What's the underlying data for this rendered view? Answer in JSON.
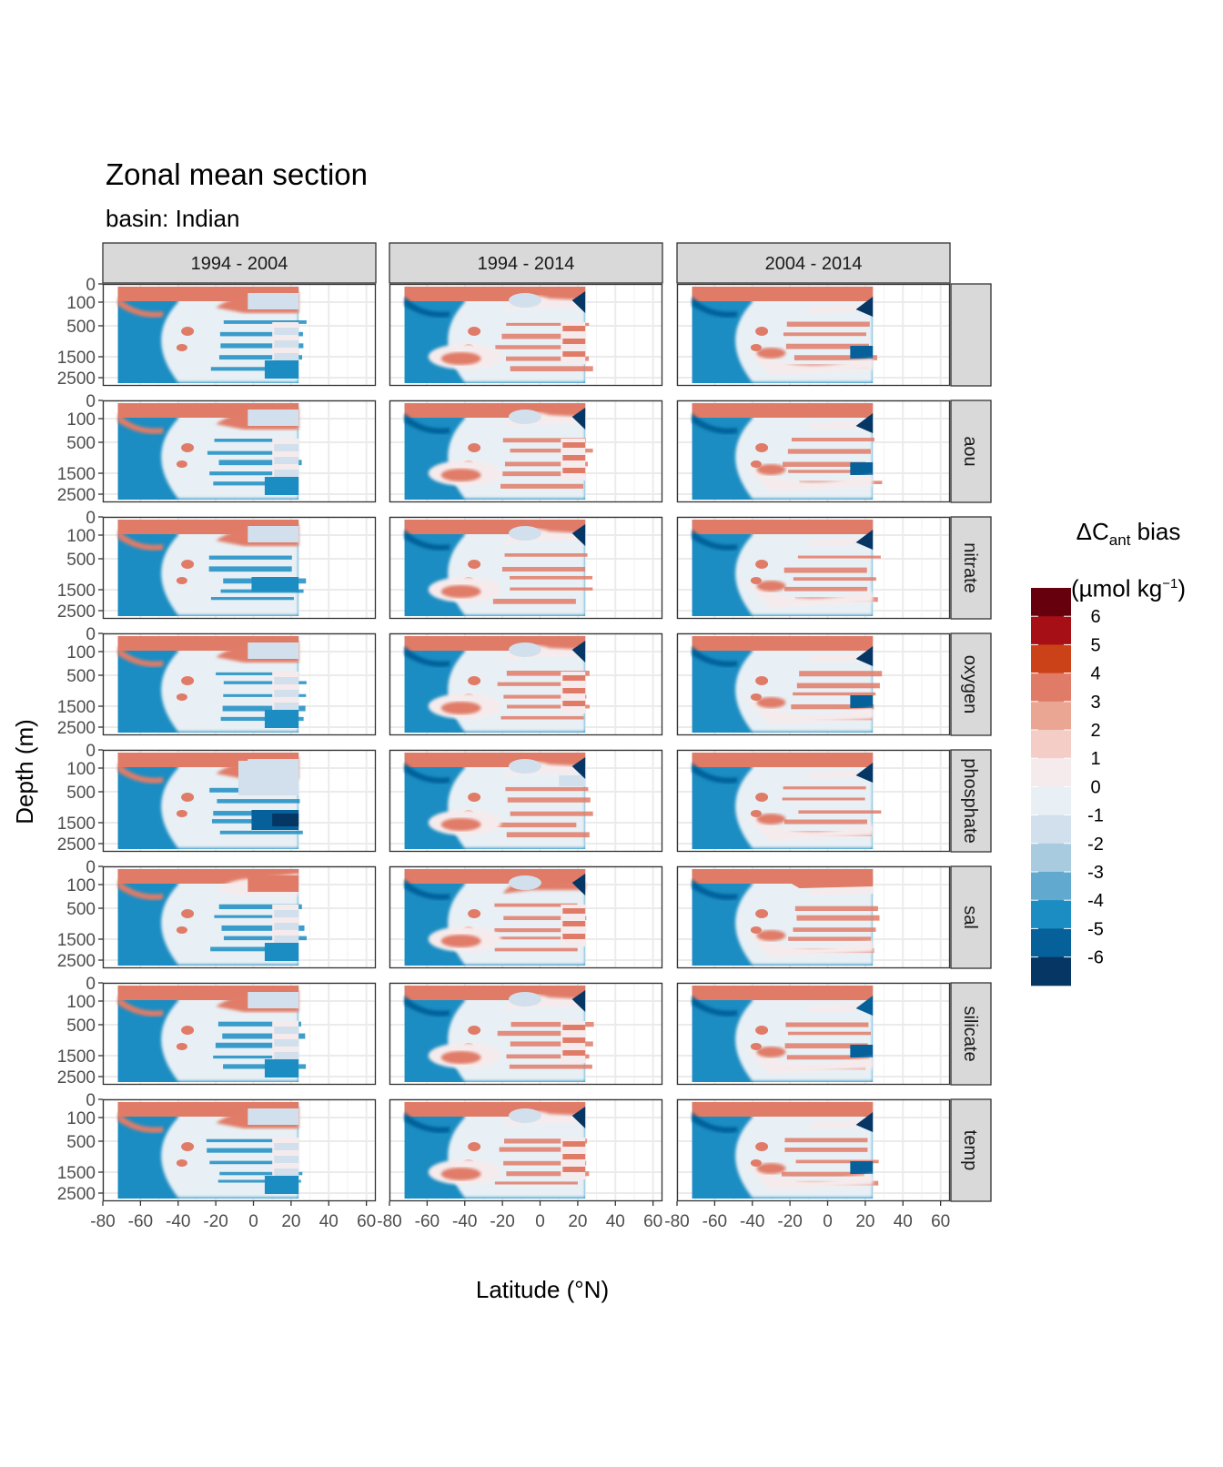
{
  "chart_data": {
    "type": "heatmap",
    "title": "Zonal mean section",
    "subtitle": "basin: Indian",
    "xlabel": "Latitude (°N)",
    "ylabel": "Depth (m)",
    "xlim": [
      -80,
      65
    ],
    "x_ticks": [
      "-80",
      "-60",
      "-40",
      "-20",
      "0",
      "20",
      "40",
      "60"
    ],
    "y_ticks": [
      "0",
      "100",
      "500",
      "1500",
      "2500"
    ],
    "column_facets": [
      "1994 - 2004",
      "1994 - 2014",
      "2004 - 2014"
    ],
    "row_facets": [
      "",
      "aou",
      "nitrate",
      "oxygen",
      "phosphate",
      "sal",
      "silicate",
      "temp"
    ],
    "legend": {
      "title_main": "ΔC",
      "title_sub": "ant",
      "title_rest": " bias",
      "unit_open": "(µmol kg",
      "unit_sup": "−1",
      "unit_close": ")",
      "labels": [
        "6",
        "5",
        "4",
        "3",
        "2",
        "1",
        "0",
        "-1",
        "-2",
        "-3",
        "-4",
        "-5",
        "-6"
      ],
      "bin_colors": [
        "#67000d",
        "#a50f15",
        "#cb4218",
        "#e07b67",
        "#eba593",
        "#f3cdc6",
        "#f6ebec",
        "#e8f0f5",
        "#d1e0ec",
        "#a8cbe0",
        "#62a9cf",
        "#1b8dc2",
        "#06609a",
        "#053664"
      ]
    },
    "data_extent_lat": [
      -72,
      24
    ]
  }
}
